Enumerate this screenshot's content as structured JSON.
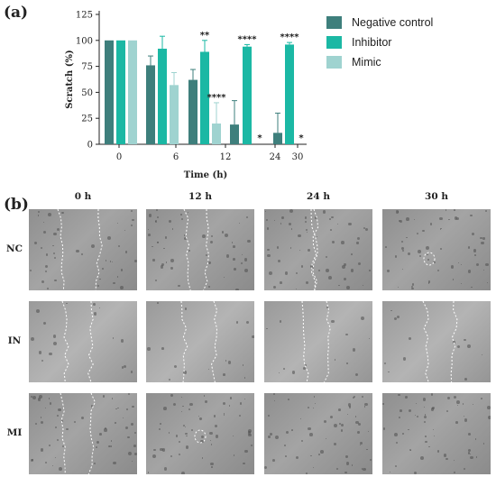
{
  "panel_a_label": "(a)",
  "panel_b_label": "(b)",
  "chart_data": {
    "type": "bar",
    "categories": [
      "0",
      "6",
      "12",
      "24",
      "30"
    ],
    "xlabel": "Time (h)",
    "ylabel": "Scratch (%)",
    "ylim": [
      0,
      125
    ],
    "yticks": [
      0,
      25,
      50,
      75,
      100,
      125
    ],
    "grid": false,
    "legend_position": "right",
    "series": [
      {
        "name": "Negative control",
        "color": "#3e7f7c",
        "values": [
          100,
          76,
          62,
          19,
          11
        ],
        "errors": [
          0,
          9,
          10,
          23,
          19
        ],
        "annotations": [
          "",
          "",
          "",
          "",
          ""
        ]
      },
      {
        "name": "Inhibitor",
        "color": "#1bb8a4",
        "values": [
          100,
          92,
          89,
          94,
          96
        ],
        "errors": [
          0,
          12,
          11,
          2,
          2
        ],
        "annotations": [
          "",
          "",
          "**",
          "****",
          "****"
        ]
      },
      {
        "name": "Mimic",
        "color": "#9fd3d0",
        "values": [
          100,
          57,
          20,
          0,
          0
        ],
        "errors": [
          0,
          12,
          20,
          0,
          0
        ],
        "annotations": [
          "",
          "",
          "****",
          "*",
          "*"
        ]
      }
    ]
  },
  "micrographs": {
    "columns": [
      "0 h",
      "12 h",
      "24 h",
      "30 h"
    ],
    "rows": [
      "NC",
      "IN",
      "MI"
    ]
  }
}
